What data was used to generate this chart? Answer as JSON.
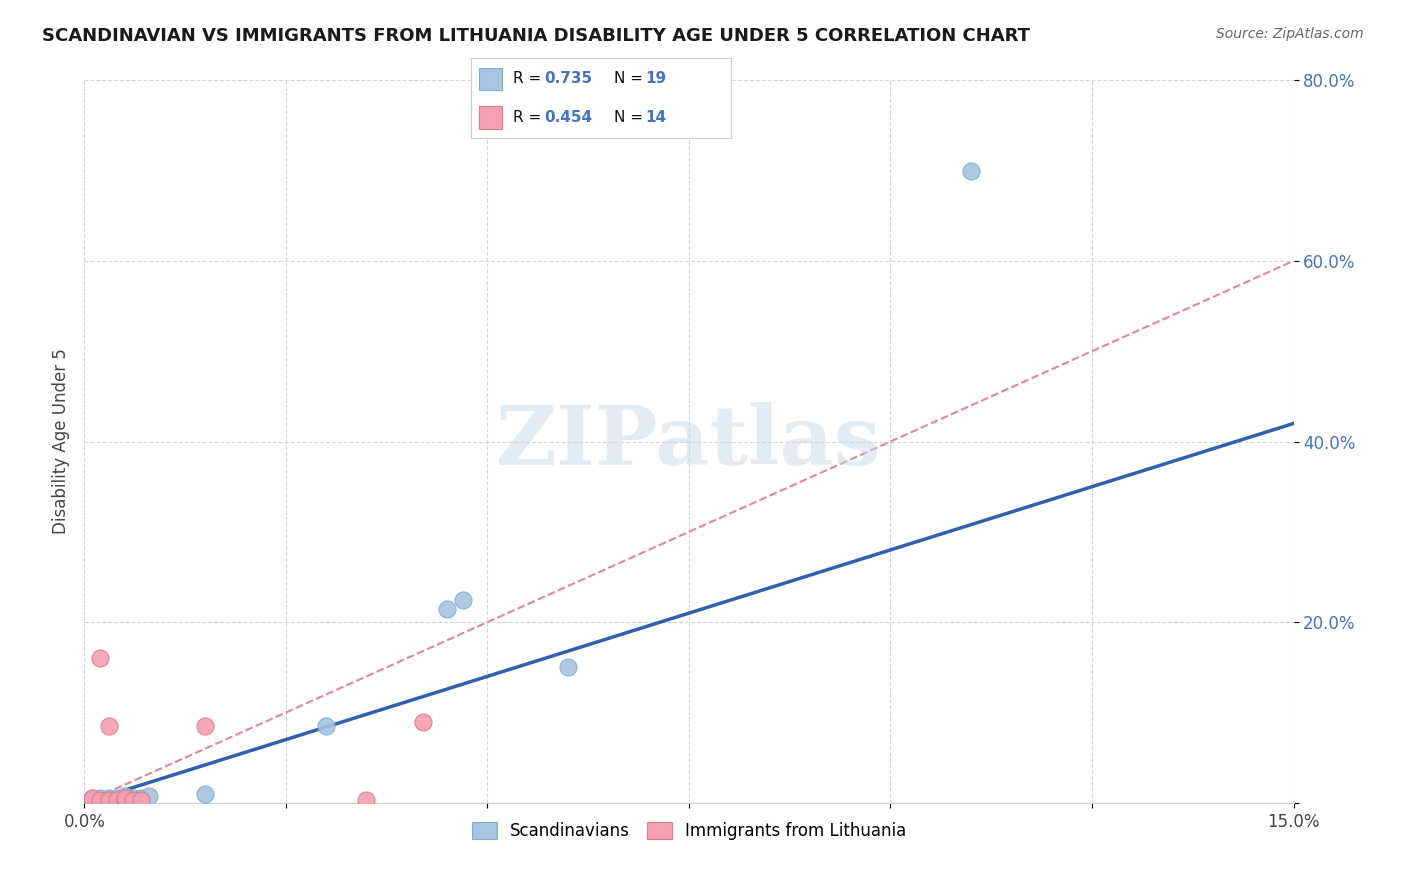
{
  "title": "SCANDINAVIAN VS IMMIGRANTS FROM LITHUANIA DISABILITY AGE UNDER 5 CORRELATION CHART",
  "source": "Source: ZipAtlas.com",
  "ylabel": "Disability Age Under 5",
  "xlim": [
    0.0,
    0.15
  ],
  "ylim": [
    0.0,
    0.8
  ],
  "scandinavian_color": "#a8c4e0",
  "scandinavian_edge": "#7aafd0",
  "lithuania_color": "#f4a0b0",
  "lithuania_edge": "#e07888",
  "trend_scand_color": "#3060b0",
  "trend_lith_color": "#e08898",
  "scand_R": 0.735,
  "scand_N": 19,
  "lith_R": 0.454,
  "lith_N": 14,
  "scand_points_x": [
    0.001,
    0.001,
    0.002,
    0.002,
    0.003,
    0.003,
    0.004,
    0.004,
    0.005,
    0.005,
    0.006,
    0.007,
    0.008,
    0.015,
    0.03,
    0.045,
    0.047,
    0.06,
    0.11
  ],
  "scand_points_y": [
    0.003,
    0.005,
    0.003,
    0.005,
    0.003,
    0.005,
    0.003,
    0.005,
    0.003,
    0.008,
    0.005,
    0.005,
    0.008,
    0.01,
    0.085,
    0.215,
    0.225,
    0.15,
    0.7
  ],
  "lith_points_x": [
    0.001,
    0.001,
    0.002,
    0.002,
    0.003,
    0.003,
    0.004,
    0.005,
    0.005,
    0.006,
    0.007,
    0.015,
    0.035,
    0.042
  ],
  "lith_points_y": [
    0.003,
    0.005,
    0.003,
    0.16,
    0.003,
    0.085,
    0.003,
    0.003,
    0.005,
    0.003,
    0.003,
    0.085,
    0.003,
    0.09
  ],
  "trend_scand_x0": 0.0,
  "trend_scand_y0": 0.0,
  "trend_scand_x1": 0.15,
  "trend_scand_y1": 0.42,
  "trend_lith_x0": 0.0,
  "trend_lith_y0": 0.0,
  "trend_lith_x1": 0.15,
  "trend_lith_y1": 0.6,
  "watermark_text": "ZIPatlas",
  "background_color": "#ffffff",
  "grid_color": "#d5d5d5"
}
